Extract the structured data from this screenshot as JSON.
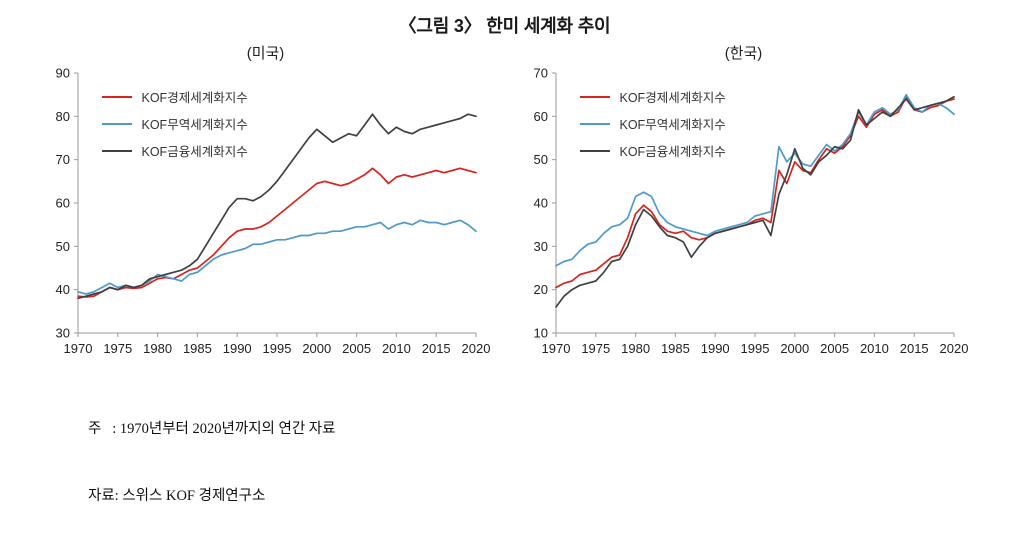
{
  "page": {
    "title": "〈그림 3〉 한미 세계화 추이",
    "note_line1": "주   : 1970년부터 2020년까지의 연간 자료",
    "note_line2": "자료: 스위스 KOF 경제연구소"
  },
  "colors": {
    "economic": "#d7241d",
    "trade": "#4e9acb",
    "financial": "#404040",
    "axis": "#9a9a9a"
  },
  "chart_data": [
    {
      "type": "line",
      "title": "(미국)",
      "xlabel": "",
      "ylabel": "",
      "grid": false,
      "legend_position": "top-left",
      "ylim": [
        30,
        90
      ],
      "yticks": [
        30,
        40,
        50,
        60,
        70,
        80,
        90
      ],
      "xticks": [
        1970,
        1975,
        1980,
        1985,
        1990,
        1995,
        2000,
        2005,
        2010,
        2015,
        2020
      ],
      "x": [
        1970,
        1971,
        1972,
        1973,
        1974,
        1975,
        1976,
        1977,
        1978,
        1979,
        1980,
        1981,
        1982,
        1983,
        1984,
        1985,
        1986,
        1987,
        1988,
        1989,
        1990,
        1991,
        1992,
        1993,
        1994,
        1995,
        1996,
        1997,
        1998,
        1999,
        2000,
        2001,
        2002,
        2003,
        2004,
        2005,
        2006,
        2007,
        2008,
        2009,
        2010,
        2011,
        2012,
        2013,
        2014,
        2015,
        2016,
        2017,
        2018,
        2019,
        2020
      ],
      "series": [
        {
          "name": "KOF경제세계화지수",
          "color": "#d7241d",
          "values": [
            38.5,
            38.3,
            38.5,
            39.5,
            40.5,
            40.0,
            40.5,
            40.3,
            40.5,
            41.5,
            42.5,
            42.8,
            42.5,
            43.5,
            44.5,
            45.0,
            46.5,
            48.0,
            50.0,
            52.0,
            53.5,
            54.0,
            54.0,
            54.5,
            55.5,
            57.0,
            58.5,
            60.0,
            61.5,
            63.0,
            64.5,
            65.0,
            64.5,
            64.0,
            64.5,
            65.5,
            66.5,
            68.0,
            66.5,
            64.5,
            66.0,
            66.5,
            66.0,
            66.5,
            67.0,
            67.5,
            67.0,
            67.5,
            68.0,
            67.5,
            67.0
          ]
        },
        {
          "name": "KOF무역세계화지수",
          "color": "#4e9acb",
          "values": [
            39.5,
            39.0,
            39.5,
            40.5,
            41.5,
            40.5,
            41.0,
            40.5,
            41.0,
            42.0,
            43.5,
            43.0,
            42.5,
            42.0,
            43.5,
            44.0,
            45.5,
            47.0,
            48.0,
            48.5,
            49.0,
            49.5,
            50.5,
            50.5,
            51.0,
            51.5,
            51.5,
            52.0,
            52.5,
            52.5,
            53.0,
            53.0,
            53.5,
            53.5,
            54.0,
            54.5,
            54.5,
            55.0,
            55.5,
            54.0,
            55.0,
            55.5,
            55.0,
            56.0,
            55.5,
            55.5,
            55.0,
            55.5,
            56.0,
            55.0,
            53.5
          ]
        },
        {
          "name": "KOF금융세계화지수",
          "color": "#404040",
          "values": [
            38.0,
            38.5,
            39.0,
            39.5,
            40.5,
            40.0,
            41.0,
            40.5,
            41.0,
            42.5,
            43.0,
            43.5,
            44.0,
            44.5,
            45.5,
            47.0,
            50.0,
            53.0,
            56.0,
            59.0,
            61.0,
            61.0,
            60.5,
            61.5,
            63.0,
            65.0,
            67.5,
            70.0,
            72.5,
            75.0,
            77.0,
            75.5,
            74.0,
            75.0,
            76.0,
            75.5,
            78.0,
            80.5,
            78.0,
            76.0,
            77.5,
            76.5,
            76.0,
            77.0,
            77.5,
            78.0,
            78.5,
            79.0,
            79.5,
            80.5,
            80.0
          ]
        }
      ]
    },
    {
      "type": "line",
      "title": "(한국)",
      "xlabel": "",
      "ylabel": "",
      "grid": false,
      "legend_position": "top-left",
      "ylim": [
        10,
        70
      ],
      "yticks": [
        10,
        20,
        30,
        40,
        50,
        60,
        70
      ],
      "xticks": [
        1970,
        1975,
        1980,
        1985,
        1990,
        1995,
        2000,
        2005,
        2010,
        2015,
        2020
      ],
      "x": [
        1970,
        1971,
        1972,
        1973,
        1974,
        1975,
        1976,
        1977,
        1978,
        1979,
        1980,
        1981,
        1982,
        1983,
        1984,
        1985,
        1986,
        1987,
        1988,
        1989,
        1990,
        1991,
        1992,
        1993,
        1994,
        1995,
        1996,
        1997,
        1998,
        1999,
        2000,
        2001,
        2002,
        2003,
        2004,
        2005,
        2006,
        2007,
        2008,
        2009,
        2010,
        2011,
        2012,
        2013,
        2014,
        2015,
        2016,
        2017,
        2018,
        2019,
        2020
      ],
      "series": [
        {
          "name": "KOF경제세계화지수",
          "color": "#d7241d",
          "values": [
            20.5,
            21.5,
            22.0,
            23.5,
            24.0,
            24.5,
            26.0,
            27.5,
            28.0,
            32.0,
            37.5,
            39.5,
            38.0,
            35.0,
            33.5,
            33.0,
            33.5,
            32.0,
            31.5,
            32.0,
            33.0,
            33.5,
            34.0,
            34.5,
            35.0,
            36.0,
            36.5,
            35.5,
            47.5,
            44.5,
            49.5,
            47.5,
            47.0,
            50.0,
            52.5,
            51.5,
            53.0,
            55.5,
            60.0,
            57.5,
            60.5,
            61.5,
            60.0,
            61.0,
            64.5,
            61.5,
            61.0,
            62.0,
            62.5,
            63.5,
            64.0
          ]
        },
        {
          "name": "KOF무역세계화지수",
          "color": "#4e9acb",
          "values": [
            25.5,
            26.5,
            27.0,
            29.0,
            30.5,
            31.0,
            33.0,
            34.5,
            35.0,
            36.5,
            41.5,
            42.5,
            41.5,
            37.5,
            35.5,
            34.5,
            34.0,
            33.5,
            33.0,
            32.5,
            33.5,
            34.0,
            34.5,
            35.0,
            35.5,
            37.0,
            37.5,
            38.0,
            53.0,
            49.5,
            51.5,
            49.0,
            48.5,
            51.0,
            53.5,
            52.0,
            53.5,
            56.0,
            61.0,
            58.0,
            61.0,
            62.0,
            60.5,
            61.5,
            65.0,
            62.0,
            61.0,
            62.5,
            63.0,
            62.0,
            60.5
          ]
        },
        {
          "name": "KOF금융세계화지수",
          "color": "#404040",
          "values": [
            16.0,
            18.5,
            20.0,
            21.0,
            21.5,
            22.0,
            24.0,
            26.5,
            27.0,
            30.0,
            35.0,
            38.5,
            37.0,
            34.5,
            32.5,
            32.0,
            31.0,
            27.5,
            30.0,
            32.0,
            33.0,
            33.5,
            34.0,
            34.5,
            35.0,
            35.5,
            36.0,
            32.5,
            42.0,
            46.5,
            52.5,
            48.0,
            46.5,
            49.5,
            51.0,
            53.0,
            52.5,
            54.5,
            61.5,
            58.0,
            59.5,
            61.0,
            60.0,
            62.0,
            64.0,
            61.5,
            62.0,
            62.5,
            63.0,
            63.5,
            64.5
          ]
        }
      ]
    }
  ]
}
